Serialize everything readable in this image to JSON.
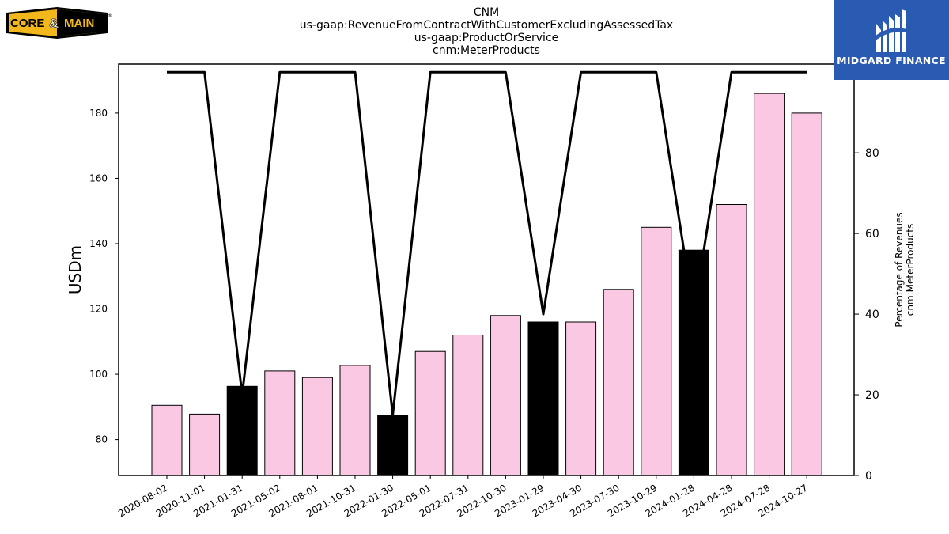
{
  "header": {
    "title_lines": [
      "CNM",
      "us-gaap:RevenueFromContractWithCustomerExcludingAssessedTax",
      "us-gaap:ProductOrService",
      "cnm:MeterProducts"
    ]
  },
  "logos": {
    "left_text_1": "CORE",
    "left_amp": "&",
    "left_text_2": "MAIN",
    "left_mark": "®",
    "right_text": "MIDGARD FINANCE"
  },
  "colors": {
    "bar_default": "#fbc8e4",
    "bar_highlight": "#000000",
    "line": "#000000",
    "logo_right_bg": "#2a5bb3",
    "logo_left_yellow": "#f2b81b"
  },
  "chart_data": {
    "type": "bar",
    "categories": [
      "2020-08-02",
      "2020-11-01",
      "2021-01-31",
      "2021-05-02",
      "2021-08-01",
      "2021-10-31",
      "2022-01-30",
      "2022-05-01",
      "2022-07-31",
      "2022-10-30",
      "2023-01-29",
      "2023-04-30",
      "2023-07-30",
      "2023-10-29",
      "2024-01-28",
      "2024-04-28",
      "2024-07-28",
      "2024-10-27"
    ],
    "values": [
      90.5,
      87.8,
      96.3,
      101,
      99,
      102.7,
      87.3,
      107,
      112,
      118,
      116,
      116,
      126,
      145,
      138,
      152,
      186,
      180
    ],
    "highlighted": [
      false,
      false,
      true,
      false,
      false,
      false,
      true,
      false,
      false,
      false,
      true,
      false,
      false,
      false,
      true,
      false,
      false,
      false
    ],
    "line_series": {
      "axis": "right",
      "values": [
        100,
        100,
        20,
        100,
        100,
        100,
        15,
        100,
        100,
        100,
        40,
        100,
        100,
        100,
        40,
        100,
        100,
        100
      ]
    },
    "ylabel": "USDm",
    "ylim": [
      69,
      195
    ],
    "yticks": [
      80,
      100,
      120,
      140,
      160,
      180
    ],
    "y2label_lines": [
      "Percentage of Revenues",
      "cnm:MeterProducts"
    ],
    "y2lim": [
      0,
      102
    ],
    "y2ticks": [
      0,
      20,
      40,
      60,
      80,
      100
    ],
    "grid": false
  }
}
